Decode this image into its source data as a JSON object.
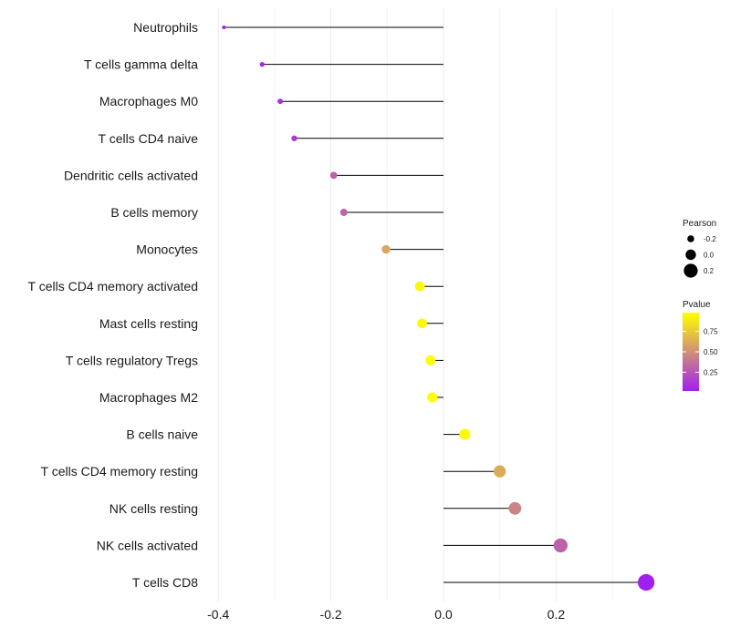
{
  "chart_data": {
    "type": "lollipop",
    "title": "",
    "xlabel": "",
    "ylabel": "",
    "xlim": [
      -0.4,
      0.36
    ],
    "x_ticks": [
      -0.4,
      -0.2,
      0.0,
      0.2
    ],
    "x_tick_labels": [
      "-0.4",
      "-0.2",
      "0.0",
      "0.2"
    ],
    "minor_gridlines_x": [
      -0.3,
      -0.1,
      0.1,
      0.3
    ],
    "baseline": 0,
    "categories": [
      "Neutrophils",
      "T cells gamma delta",
      "Macrophages M0",
      "T cells CD4 naive",
      "Dendritic cells activated",
      "B cells memory",
      "Monocytes",
      "T cells CD4 memory activated",
      "Mast cells resting",
      "T cells regulatory  Tregs ",
      "Macrophages M2",
      "B cells naive",
      "T cells CD4 memory resting",
      "NK cells resting",
      "NK cells activated",
      "T cells CD8"
    ],
    "pearson": [
      -0.39,
      -0.322,
      -0.29,
      -0.265,
      -0.195,
      -0.177,
      -0.102,
      -0.042,
      -0.038,
      -0.023,
      -0.02,
      0.038,
      0.1,
      0.127,
      0.208,
      0.36
    ],
    "pvalue": [
      0.02,
      0.06,
      0.1,
      0.13,
      0.3,
      0.32,
      0.6,
      0.95,
      0.95,
      0.98,
      0.98,
      0.95,
      0.62,
      0.45,
      0.3,
      0.02
    ],
    "legend": {
      "size_title": "Pearson",
      "size_entries": [
        {
          "label": "-0.2",
          "value": -0.2
        },
        {
          "label": "0.0",
          "value": 0.0
        },
        {
          "label": "0.2",
          "value": 0.2
        }
      ],
      "color_title": "Pvalue",
      "color_ticks": [
        {
          "label": "0.75",
          "value": 0.75
        },
        {
          "label": "0.50",
          "value": 0.5
        },
        {
          "label": "0.25",
          "value": 0.25
        }
      ],
      "color_range": [
        0.02,
        0.98
      ],
      "color_low": "#a020f0",
      "color_high": "#ffff00"
    }
  }
}
